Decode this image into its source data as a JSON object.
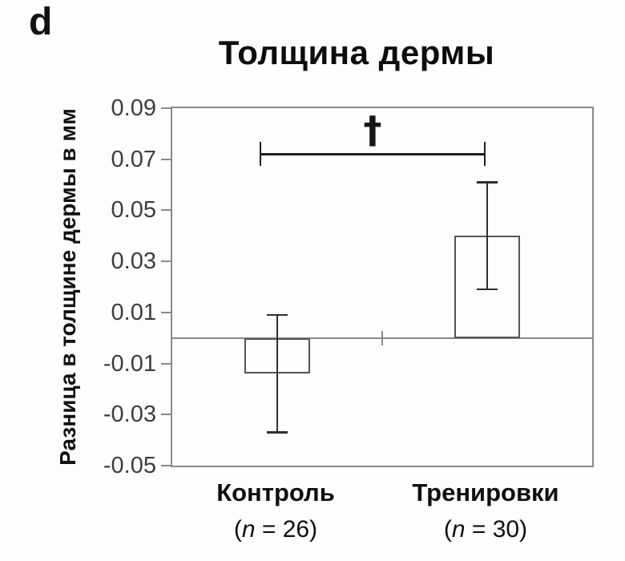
{
  "panel_label": "d",
  "chart_data": {
    "type": "bar",
    "title": "Толщина дермы",
    "ylabel": "Разница в толщине дермы в мм",
    "xlabel": "",
    "ylim": [
      -0.05,
      0.09
    ],
    "yticks": [
      0.09,
      0.07,
      0.05,
      0.03,
      0.01,
      -0.01,
      -0.03,
      -0.05
    ],
    "ytick_labels": [
      "0.09",
      "0.07",
      "0.05",
      "0.03",
      "0.01",
      "-0.01",
      "-0.03",
      "-0.05"
    ],
    "categories": [
      "Контроль",
      "Тренировки"
    ],
    "sample_sizes": [
      26,
      30
    ],
    "category_sublabels": [
      {
        "open": "(",
        "var": "n",
        "rest": " = 26)"
      },
      {
        "open": "(",
        "var": "n",
        "rest": " = 30)"
      }
    ],
    "values": [
      -0.014,
      0.04
    ],
    "error_low": [
      -0.037,
      0.019
    ],
    "error_high": [
      0.009,
      0.061
    ],
    "significance": {
      "symbol": "†",
      "y": 0.072,
      "between": [
        "Контроль",
        "Тренировки"
      ]
    },
    "grid": false,
    "legend": false,
    "bar_fill": "transparent",
    "bar_outline_color": "#555555",
    "axis_color": "#8a8a8a",
    "errorbar_color": "#2e2e2e",
    "text_color": "#111111"
  }
}
